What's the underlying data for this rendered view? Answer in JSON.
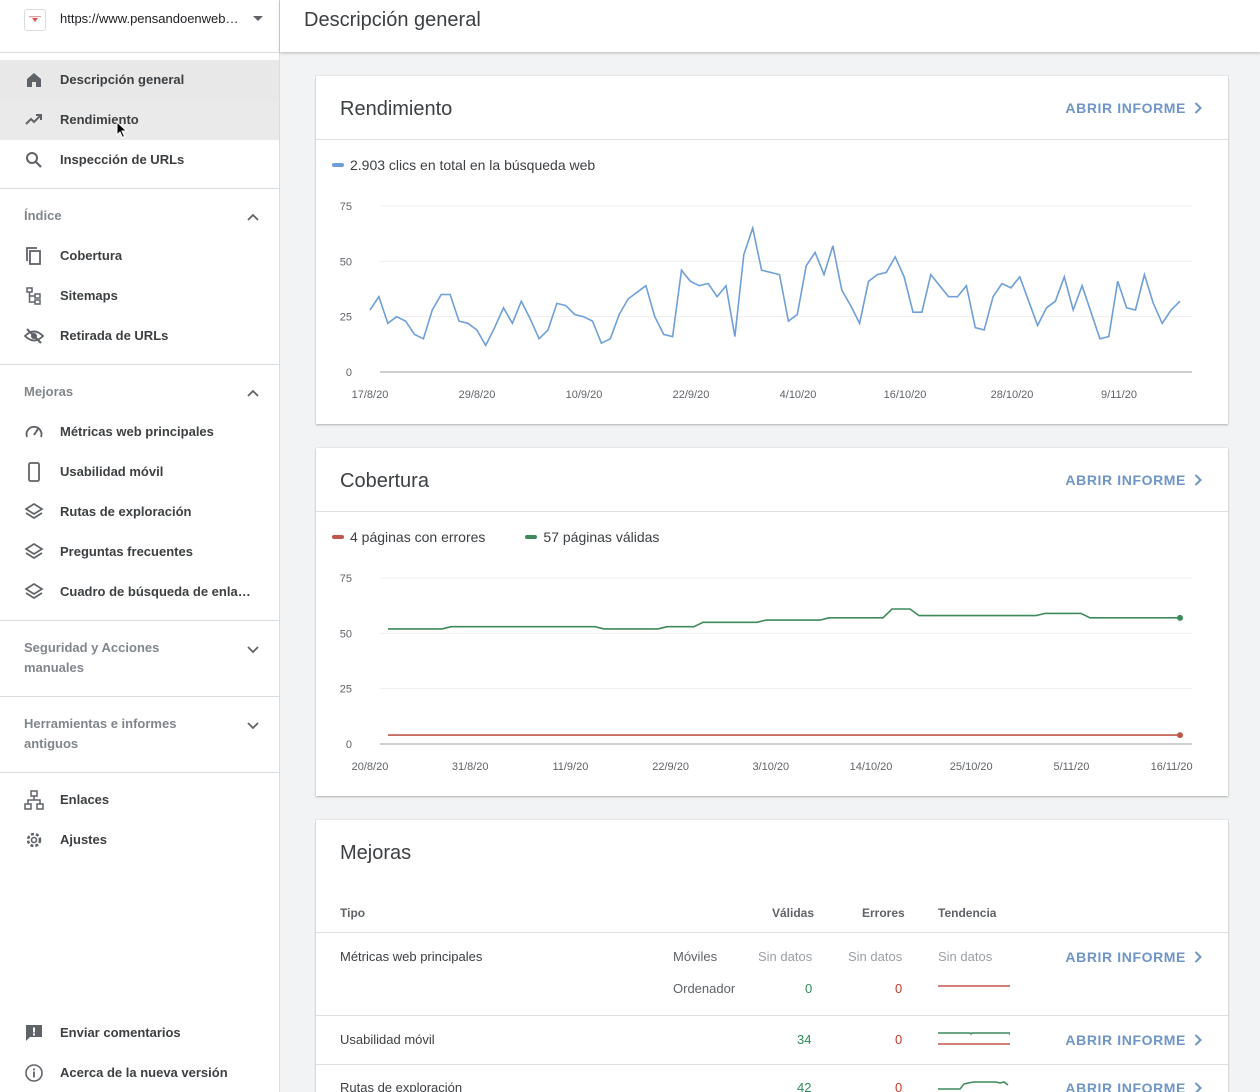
{
  "property": {
    "url": "https://www.pensandoenweb.es/"
  },
  "page": {
    "title": "Descripción general"
  },
  "sidebar": {
    "top_items": [
      {
        "label": "Descripción general",
        "icon": "home-icon"
      },
      {
        "label": "Rendimiento",
        "icon": "trending-up-icon"
      },
      {
        "label": "Inspección de URLs",
        "icon": "search-icon"
      }
    ],
    "index_section": {
      "label": "Índice"
    },
    "index_items": [
      {
        "label": "Cobertura",
        "icon": "coverage-icon"
      },
      {
        "label": "Sitemaps",
        "icon": "sitemap-icon"
      },
      {
        "label": "Retirada de URLs",
        "icon": "visibility-off-icon"
      }
    ],
    "improvements_section": {
      "label": "Mejoras"
    },
    "improvements_items": [
      {
        "label": "Métricas web principales",
        "icon": "speed-icon"
      },
      {
        "label": "Usabilidad móvil",
        "icon": "smartphone-icon"
      },
      {
        "label": "Rutas de exploración",
        "icon": "layers-icon"
      },
      {
        "label": "Preguntas frecuentes",
        "icon": "layers-icon"
      },
      {
        "label": "Cuadro de búsqueda de enlaces de sitio",
        "icon": "layers-icon"
      }
    ],
    "security_section": {
      "label_line1": "Seguridad y Acciones",
      "label_line2": "manuales"
    },
    "tools_section": {
      "label_line1": "Herramientas e informes",
      "label_line2": "antiguos"
    },
    "bottom_items": [
      {
        "label": "Enlaces",
        "icon": "links-icon"
      },
      {
        "label": "Ajustes",
        "icon": "settings-icon"
      }
    ],
    "footer_items": [
      {
        "label": "Enviar comentarios",
        "icon": "feedback-icon"
      },
      {
        "label": "Acerca de la nueva versión",
        "icon": "info-icon"
      }
    ]
  },
  "performance_card": {
    "title": "Rendimiento",
    "open_label": "ABRIR INFORME",
    "legend": "2.903 clics en total en la búsqueda web",
    "color": "#6f9fd8"
  },
  "coverage_card": {
    "title": "Cobertura",
    "open_label": "ABRIR INFORME",
    "legend_errors": "4 páginas con errores",
    "legend_valid": "57 páginas válidas",
    "error_color": "#c0574b",
    "valid_color": "#3e8a5a"
  },
  "improvements_card": {
    "title": "Mejoras",
    "headers": {
      "type": "Tipo",
      "valid": "Válidas",
      "errors": "Errores",
      "trend": "Tendencia"
    },
    "rows": [
      {
        "name": "Métricas web principales",
        "open_label": "ABRIR INFORME",
        "sub": [
          {
            "device": "Móviles",
            "valid": "Sin datos",
            "errors": "Sin datos",
            "trend": "Sin datos"
          },
          {
            "device": "Ordenador",
            "valid": "0",
            "errors": "0"
          }
        ]
      },
      {
        "name": "Usabilidad móvil",
        "valid": "34",
        "errors": "0",
        "open_label": "ABRIR INFORME"
      },
      {
        "name": "Rutas de exploración",
        "valid": "42",
        "errors": "0",
        "open_label": "ABRIR INFORME"
      }
    ]
  },
  "chart_data": [
    {
      "type": "line",
      "title": "",
      "ylim": [
        0,
        75
      ],
      "yticks": [
        0,
        25,
        50,
        75
      ],
      "x_tick_labels": [
        "17/8/20",
        "29/8/20",
        "10/9/20",
        "22/9/20",
        "4/10/20",
        "16/10/20",
        "28/10/20",
        "9/11/20"
      ],
      "series": [
        {
          "name": "2.903 clics en total en la búsqueda web",
          "values": [
            28,
            34,
            22,
            25,
            23,
            17,
            15,
            28,
            35,
            35,
            23,
            22,
            19,
            12,
            20,
            29,
            22,
            32,
            24,
            15,
            19,
            31,
            30,
            26,
            25,
            23,
            13,
            15,
            26,
            33,
            36,
            39,
            25,
            17,
            16,
            46,
            41,
            39,
            40,
            34,
            39,
            16,
            53,
            65,
            46,
            45,
            44,
            23,
            26,
            48,
            54,
            44,
            57,
            37,
            30,
            22,
            41,
            44,
            45,
            52,
            43,
            27,
            27,
            44,
            39,
            34,
            34,
            39,
            20,
            19,
            34,
            40,
            38,
            43,
            32,
            21,
            29,
            32,
            43,
            28,
            39,
            27,
            15,
            16,
            41,
            29,
            28,
            44,
            31,
            22,
            28,
            32
          ]
        }
      ]
    },
    {
      "type": "line",
      "title": "",
      "ylim": [
        0,
        75
      ],
      "yticks": [
        0,
        25,
        50,
        75
      ],
      "x_tick_labels": [
        "20/8/20",
        "31/8/20",
        "11/9/20",
        "22/9/20",
        "3/10/20",
        "14/10/20",
        "25/10/20",
        "5/11/20",
        "16/11/20"
      ],
      "series": [
        {
          "name": "57 páginas válidas",
          "values": [
            52,
            52,
            52,
            52,
            52,
            52,
            52,
            53,
            53,
            53,
            53,
            53,
            53,
            53,
            53,
            53,
            53,
            53,
            53,
            53,
            53,
            53,
            53,
            53,
            52,
            52,
            52,
            52,
            52,
            52,
            52,
            53,
            53,
            53,
            53,
            55,
            55,
            55,
            55,
            55,
            55,
            55,
            56,
            56,
            56,
            56,
            56,
            56,
            56,
            57,
            57,
            57,
            57,
            57,
            57,
            57,
            61,
            61,
            61,
            58,
            58,
            58,
            58,
            58,
            58,
            58,
            58,
            58,
            58,
            58,
            58,
            58,
            58,
            59,
            59,
            59,
            59,
            59,
            57,
            57,
            57,
            57,
            57,
            57,
            57,
            57,
            57,
            57,
            57
          ]
        },
        {
          "name": "4 páginas con errores",
          "values": [
            4,
            4,
            4,
            4,
            4,
            4,
            4,
            4,
            4,
            4,
            4,
            4,
            4,
            4,
            4,
            4,
            4,
            4,
            4,
            4,
            4,
            4,
            4,
            4,
            4,
            4,
            4,
            4,
            4,
            4,
            4,
            4,
            4,
            4,
            4,
            4,
            4,
            4,
            4,
            4,
            4,
            4,
            4,
            4,
            4,
            4,
            4,
            4,
            4,
            4,
            4,
            4,
            4,
            4,
            4,
            4,
            4,
            4,
            4,
            4,
            4,
            4,
            4,
            4,
            4,
            4,
            4,
            4,
            4,
            4,
            4,
            4,
            4,
            4,
            4,
            4,
            4,
            4,
            4,
            4,
            4,
            4,
            4,
            4,
            4,
            4,
            4,
            4,
            4
          ]
        }
      ]
    }
  ]
}
